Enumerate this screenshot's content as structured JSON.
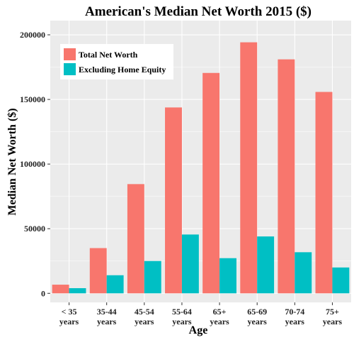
{
  "chart_data": {
    "type": "bar",
    "title": "American's Median Net Worth 2015 ($)",
    "xlabel": "Age",
    "ylabel": "Median Net Worth ($)",
    "categories": [
      [
        "< 35",
        "years"
      ],
      [
        "35-44",
        "years"
      ],
      [
        "45-54",
        "years"
      ],
      [
        "55-64",
        "years"
      ],
      [
        "65+",
        "years"
      ],
      [
        "65-69",
        "years"
      ],
      [
        "70-74",
        "years"
      ],
      [
        "75+",
        "years"
      ]
    ],
    "series": [
      {
        "name": "Total Net Worth",
        "color": "#F8766D",
        "values": [
          6700,
          35000,
          84500,
          143800,
          170500,
          194200,
          181000,
          155800
        ]
      },
      {
        "name": "Excluding Home Equity",
        "color": "#00BFC4",
        "values": [
          4000,
          14000,
          25000,
          45500,
          27200,
          44000,
          31800,
          20000
        ]
      }
    ],
    "ylim": [
      -7000,
      211000
    ],
    "yticks": [
      0,
      50000,
      100000,
      150000,
      200000
    ],
    "ytick_labels": [
      "0",
      "50000",
      "100000",
      "150000",
      "200000"
    ],
    "grid": true,
    "legend": "top-left",
    "panel_color": "#EBEBEB"
  }
}
